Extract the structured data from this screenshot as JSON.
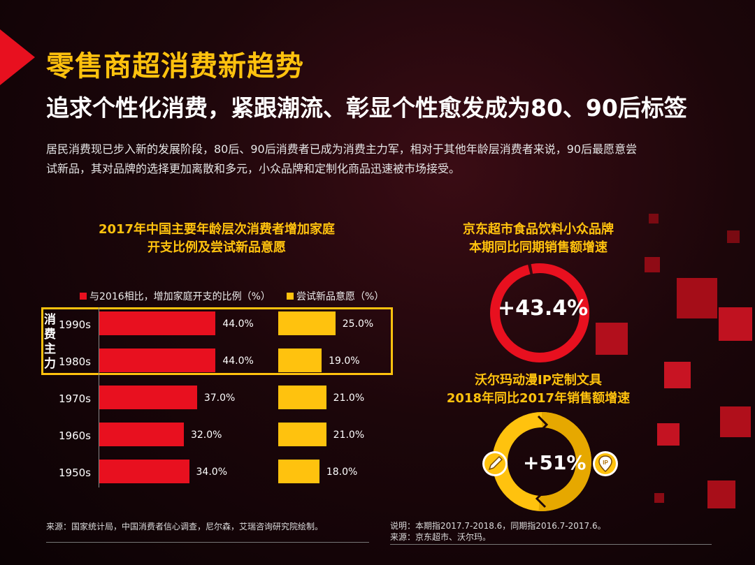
{
  "header": {
    "title": "零售商超消费新趋势",
    "subtitle": "追求个性化消费，紧跟潮流、彰显个性愈发成为80、90后标签",
    "intro_line1": "居民消费现已步入新的发展阶段，80后、90后消费者已成为消费主力军，相对于其他年龄层消费者来说，90后最愿意尝",
    "intro_line2": "试新品，其对品牌的选择更加离散和多元，小众品牌和定制化商品迅速被市场接受。"
  },
  "colors": {
    "red": "#e8101f",
    "yellow": "#ffc20e"
  },
  "chart_data": [
    {
      "type": "bar",
      "title_line1": "2017年中国主要年龄层次消费者增加家庭",
      "title_line2": "开支比例及尝试新品意愿",
      "categories": [
        "1990s",
        "1980s",
        "1970s",
        "1960s",
        "1950s"
      ],
      "series": [
        {
          "name": "与2016相比，增加家庭开支的比例（%）",
          "values": [
            44.0,
            44.0,
            37.0,
            32.0,
            34.0
          ],
          "labels": [
            "44.0%",
            "44.0%",
            "37.0%",
            "32.0%",
            "34.0%"
          ]
        },
        {
          "name": "尝试新品意愿（%）",
          "values": [
            25.0,
            19.0,
            21.0,
            21.0,
            18.0
          ],
          "labels": [
            "25.0%",
            "19.0%",
            "21.0%",
            "21.0%",
            "18.0%"
          ]
        }
      ],
      "highlight_label": "消费主力",
      "highlight_categories": [
        "1990s",
        "1980s"
      ],
      "source": "来源：国家统计局，中国消费者信心调查，尼尔森，艾瑞咨询研究院绘制。"
    },
    {
      "type": "pie",
      "title_line1": "京东超市食品饮料小众品牌",
      "title_line2": "本期同比同期销售额增速",
      "value": 43.4,
      "label": "+43.4%"
    },
    {
      "type": "pie",
      "title_line1": "沃尔玛动漫IP定制文具",
      "title_line2": "2018年同比2017年销售额增速",
      "value": 51,
      "label": "+51%"
    }
  ],
  "notes": {
    "line1": "说明：本期指2017.7-2018.6，同期指2016.7-2017.6。",
    "line2": "来源：京东超市、沃尔玛。"
  },
  "icons": [
    "pencil-icon",
    "ip-badge-icon"
  ]
}
